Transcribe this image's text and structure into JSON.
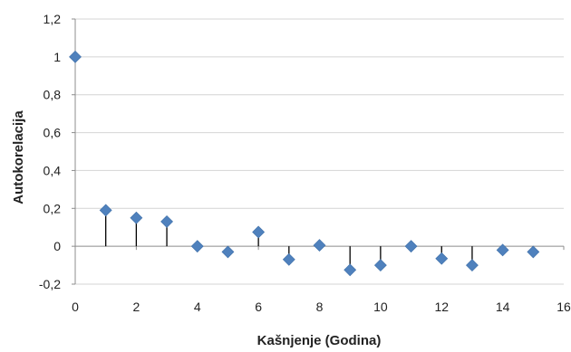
{
  "chart_data": {
    "type": "scatter",
    "title": "",
    "xlabel": "Kašnjenje (Godina)",
    "ylabel": "Autokorelacija",
    "xlim": [
      0,
      16
    ],
    "ylim": [
      -0.2,
      1.2
    ],
    "x_ticks": [
      0,
      2,
      4,
      6,
      8,
      10,
      12,
      14,
      16
    ],
    "x_tick_labels": [
      "0",
      "2",
      "4",
      "6",
      "8",
      "10",
      "12",
      "14",
      "16"
    ],
    "y_ticks": [
      -0.2,
      0,
      0.2,
      0.4,
      0.6,
      0.8,
      1,
      1.2
    ],
    "y_tick_labels": [
      "-0,2",
      "0",
      "0,2",
      "0,4",
      "0,6",
      "0,8",
      "1",
      "1,2"
    ],
    "grid": true,
    "marker_color": "#4f81bd",
    "stems": true,
    "series": [
      {
        "x": [
          0,
          1,
          2,
          3,
          4,
          5,
          6,
          7,
          8,
          9,
          10,
          11,
          12,
          13,
          14,
          15
        ],
        "values": [
          1.0,
          0.19,
          0.15,
          0.13,
          0.0,
          -0.03,
          0.075,
          -0.07,
          0.005,
          -0.125,
          -0.1,
          0.0,
          -0.065,
          -0.1,
          -0.02,
          -0.03
        ]
      }
    ]
  }
}
